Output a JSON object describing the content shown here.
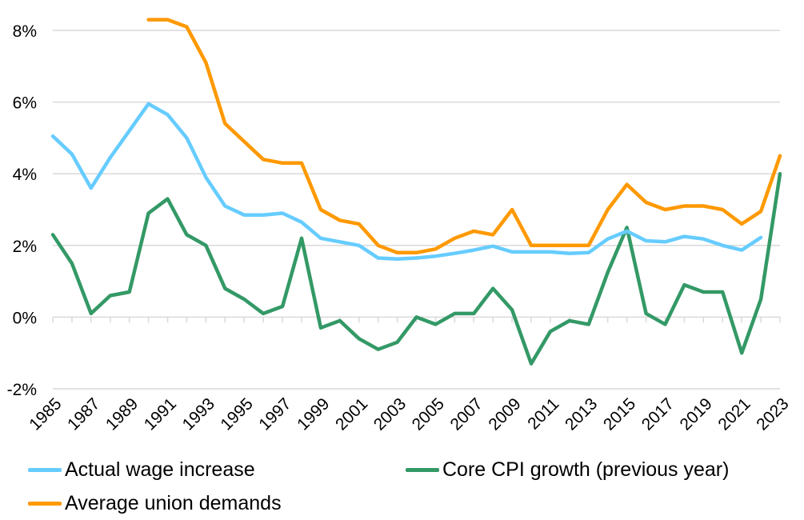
{
  "chart_data": {
    "type": "line",
    "title": "",
    "xlabel": "",
    "ylabel": "",
    "x": [
      1985,
      1986,
      1987,
      1988,
      1989,
      1990,
      1991,
      1992,
      1993,
      1994,
      1995,
      1996,
      1997,
      1998,
      1999,
      2000,
      2001,
      2002,
      2003,
      2004,
      2005,
      2006,
      2007,
      2008,
      2009,
      2010,
      2011,
      2012,
      2013,
      2014,
      2015,
      2016,
      2017,
      2018,
      2019,
      2020,
      2021,
      2022,
      2023
    ],
    "x_tick_labels": [
      "1985",
      "1987",
      "1989",
      "1991",
      "1993",
      "1995",
      "1997",
      "1999",
      "2001",
      "2003",
      "2005",
      "2007",
      "2009",
      "2011",
      "2013",
      "2015",
      "2017",
      "2019",
      "2021",
      "2023"
    ],
    "ylim": [
      -2,
      8
    ],
    "y_ticks": [
      -2,
      0,
      2,
      4,
      6,
      8
    ],
    "y_tick_labels": [
      "-2%",
      "0%",
      "2%",
      "4%",
      "6%",
      "8%"
    ],
    "grid": "horizontal",
    "legend_position": "bottom",
    "series": [
      {
        "name": "Actual wage increase",
        "color": "#66CCFF",
        "values": [
          5.05,
          4.55,
          3.6,
          4.45,
          5.2,
          5.95,
          5.65,
          5.0,
          3.9,
          3.1,
          2.85,
          2.85,
          2.9,
          2.65,
          2.2,
          2.1,
          2.0,
          1.65,
          1.62,
          1.65,
          1.7,
          1.78,
          1.87,
          1.98,
          1.82,
          1.82,
          1.82,
          1.78,
          1.8,
          2.18,
          2.4,
          2.13,
          2.1,
          2.25,
          2.18,
          2.0,
          1.87,
          2.22,
          null
        ]
      },
      {
        "name": "Average union demands",
        "color": "#FF9900",
        "values": [
          null,
          null,
          null,
          null,
          null,
          8.3,
          8.3,
          8.1,
          7.1,
          5.4,
          4.9,
          4.4,
          4.3,
          4.3,
          3.0,
          2.7,
          2.6,
          2.0,
          1.8,
          1.8,
          1.9,
          2.2,
          2.4,
          2.3,
          3.0,
          2.0,
          2.0,
          2.0,
          2.0,
          3.0,
          3.7,
          3.2,
          3.0,
          3.1,
          3.1,
          3.0,
          2.6,
          2.95,
          4.5
        ]
      },
      {
        "name": "Core CPI growth (previous year)",
        "color": "#339966",
        "values": [
          2.3,
          1.5,
          0.1,
          0.6,
          0.7,
          2.9,
          3.3,
          2.3,
          2.0,
          0.8,
          0.5,
          0.1,
          0.3,
          2.2,
          -0.3,
          -0.1,
          -0.6,
          -0.9,
          -0.7,
          0.0,
          -0.2,
          0.1,
          0.1,
          0.8,
          0.2,
          -1.3,
          -0.4,
          -0.1,
          -0.2,
          1.25,
          2.5,
          0.1,
          -0.2,
          0.9,
          0.7,
          0.7,
          -1.0,
          0.5,
          4.0
        ]
      }
    ]
  }
}
